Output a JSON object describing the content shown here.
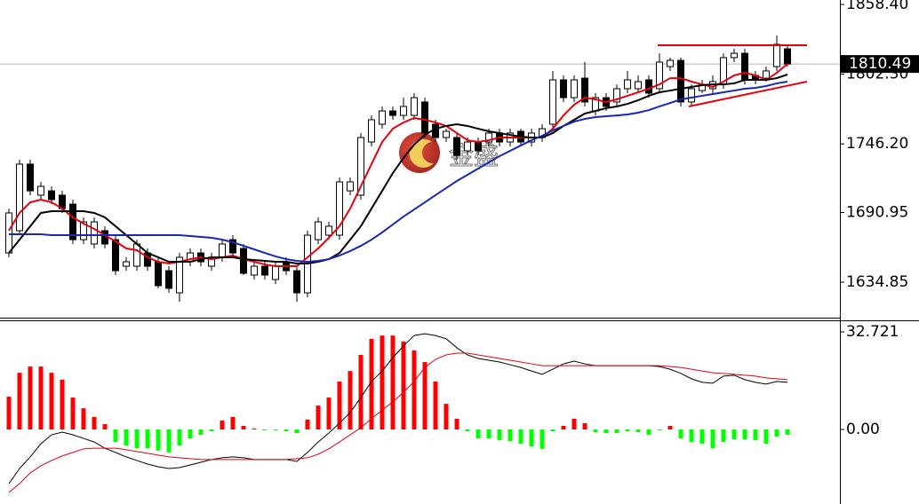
{
  "chart_data": [
    {
      "type": "candlestick",
      "open": [
        1658.4,
        1676.3,
        1729.9,
        1704.9,
        1708.4,
        1704.9,
        1697.7,
        1669.1,
        1665.6,
        1676.3,
        1669.1,
        1647.7,
        1647.7,
        1658.4,
        1651.3,
        1644.1,
        1626.3,
        1651.3,
        1658.4,
        1647.7,
        1654.9,
        1669.1,
        1662.0,
        1640.6,
        1647.7,
        1637.0,
        1651.3,
        1644.1,
        1626.3,
        1669.1,
        1672.7,
        1672.7,
        1708.4,
        1704.9,
        1747.7,
        1762.0,
        1772.7,
        1769.1,
        1769.1,
        1779.9,
        1762.0,
        1751.3,
        1751.3,
        1740.6,
        1747.7,
        1747.7,
        1754.9,
        1747.7,
        1756.3,
        1747.7,
        1751.3,
        1762.0,
        1797.7,
        1783.4,
        1799.1,
        1772.7,
        1783.4,
        1779.9,
        1790.6,
        1790.6,
        1797.7,
        1790.6,
        1808.4,
        1813.4,
        1779.9,
        1789.1,
        1790.6,
        1794.1,
        1815.6,
        1819.1,
        1801.3,
        1799.1,
        1808.4,
        1822.7
      ],
      "high": [
        1694.1,
        1733.4,
        1733.4,
        1715.6,
        1712.0,
        1708.4,
        1701.3,
        1687.0,
        1687.0,
        1679.9,
        1672.7,
        1654.9,
        1669.1,
        1662.0,
        1654.9,
        1647.7,
        1658.4,
        1662.0,
        1662.0,
        1658.4,
        1669.1,
        1672.7,
        1665.6,
        1651.3,
        1651.3,
        1651.3,
        1654.9,
        1647.7,
        1676.3,
        1687.0,
        1683.4,
        1719.1,
        1719.1,
        1754.9,
        1769.1,
        1776.3,
        1776.3,
        1783.4,
        1787.0,
        1783.4,
        1765.6,
        1758.4,
        1754.9,
        1751.3,
        1751.3,
        1758.4,
        1758.4,
        1758.4,
        1758.4,
        1758.4,
        1762.0,
        1804.9,
        1801.3,
        1801.3,
        1812.0,
        1787.0,
        1787.0,
        1794.1,
        1804.9,
        1801.3,
        1801.3,
        1819.1,
        1815.6,
        1815.6,
        1794.1,
        1797.7,
        1801.3,
        1819.1,
        1822.7,
        1822.7,
        1804.9,
        1808.4,
        1833.4,
        1826.3
      ],
      "low": [
        1654.9,
        1672.7,
        1704.9,
        1701.3,
        1697.7,
        1690.6,
        1665.6,
        1665.6,
        1662.0,
        1662.0,
        1640.6,
        1644.1,
        1644.1,
        1644.1,
        1629.9,
        1626.3,
        1619.1,
        1647.7,
        1647.7,
        1644.1,
        1651.3,
        1654.9,
        1640.6,
        1637.0,
        1637.0,
        1633.4,
        1640.6,
        1619.1,
        1622.7,
        1665.6,
        1669.1,
        1669.1,
        1704.9,
        1701.3,
        1744.1,
        1758.4,
        1765.6,
        1765.6,
        1765.6,
        1751.3,
        1747.7,
        1747.7,
        1733.4,
        1737.0,
        1737.0,
        1744.1,
        1744.1,
        1744.1,
        1744.1,
        1744.1,
        1747.7,
        1758.4,
        1779.9,
        1779.9,
        1776.3,
        1769.1,
        1772.7,
        1776.3,
        1787.0,
        1787.0,
        1783.4,
        1787.0,
        1804.9,
        1776.3,
        1776.3,
        1787.0,
        1787.0,
        1790.6,
        1812.0,
        1794.1,
        1794.1,
        1796.3,
        1804.9,
        1808.4
      ],
      "close": [
        1690.6,
        1729.9,
        1708.4,
        1712.0,
        1701.3,
        1694.1,
        1669.1,
        1683.4,
        1683.4,
        1665.6,
        1644.1,
        1651.3,
        1665.6,
        1647.7,
        1632.0,
        1629.9,
        1654.9,
        1658.4,
        1651.3,
        1654.9,
        1665.6,
        1658.4,
        1642.0,
        1647.7,
        1640.6,
        1647.7,
        1644.1,
        1626.3,
        1672.7,
        1683.4,
        1679.9,
        1715.6,
        1715.6,
        1751.3,
        1765.6,
        1772.7,
        1769.1,
        1776.3,
        1783.4,
        1754.9,
        1751.3,
        1756.3,
        1737.0,
        1747.7,
        1740.6,
        1754.9,
        1747.7,
        1754.9,
        1747.7,
        1754.9,
        1758.4,
        1797.7,
        1783.4,
        1797.7,
        1779.9,
        1783.4,
        1776.3,
        1790.6,
        1797.7,
        1796.3,
        1787.0,
        1812.0,
        1813.4,
        1779.9,
        1790.6,
        1794.1,
        1796.3,
        1815.6,
        1819.1,
        1797.7,
        1797.7,
        1804.9,
        1826.3,
        1810.49
      ],
      "up_color": "#ffffff",
      "down_color": "#000000",
      "series": [
        {
          "color": "#e8000b",
          "values": [
            1676.3,
            1690.6,
            1699.1,
            1701.3,
            1699.1,
            1694.1,
            1687.0,
            1682.0,
            1677.7,
            1672.7,
            1667.7,
            1662.0,
            1660.6,
            1654.9,
            1651.3,
            1649.9,
            1651.3,
            1653.4,
            1654.9,
            1653.4,
            1654.9,
            1656.3,
            1653.4,
            1651.3,
            1649.1,
            1647.7,
            1647.7,
            1647.7,
            1654.9,
            1662.0,
            1670.6,
            1679.9,
            1694.1,
            1712.0,
            1729.9,
            1747.7,
            1758.4,
            1763.4,
            1767.0,
            1765.6,
            1763.4,
            1760.6,
            1754.9,
            1749.1,
            1747.7,
            1749.1,
            1751.3,
            1751.3,
            1751.3,
            1751.3,
            1751.3,
            1758.4,
            1769.1,
            1777.7,
            1783.4,
            1782.0,
            1779.9,
            1782.0,
            1784.9,
            1787.7,
            1790.6,
            1794.1,
            1799.1,
            1799.1,
            1796.3,
            1794.1,
            1792.0,
            1796.3,
            1801.3,
            1803.4,
            1801.3,
            1797.7,
            1803.4,
            1810.6
          ]
        },
        {
          "color": "#000000",
          "values": [
            1658.4,
            1669.1,
            1679.9,
            1690.6,
            1692.0,
            1692.0,
            1692.0,
            1692.0,
            1690.6,
            1687.0,
            1679.9,
            1672.7,
            1665.6,
            1658.4,
            1654.9,
            1651.3,
            1651.3,
            1651.3,
            1653.4,
            1654.9,
            1654.9,
            1654.9,
            1653.4,
            1652.7,
            1652.0,
            1651.3,
            1651.3,
            1649.9,
            1649.9,
            1651.3,
            1653.4,
            1658.4,
            1669.1,
            1679.9,
            1694.1,
            1708.4,
            1722.7,
            1734.9,
            1745.6,
            1753.4,
            1758.4,
            1760.6,
            1762.0,
            1760.6,
            1758.4,
            1756.3,
            1754.9,
            1753.4,
            1752.0,
            1751.3,
            1751.3,
            1754.9,
            1760.6,
            1765.6,
            1770.6,
            1772.7,
            1774.9,
            1776.3,
            1778.4,
            1781.3,
            1784.9,
            1787.7,
            1789.1,
            1790.6,
            1792.0,
            1793.4,
            1794.1,
            1794.1,
            1794.9,
            1797.7,
            1797.7,
            1797.7,
            1799.1,
            1802.0
          ]
        },
        {
          "color": "#1428b4",
          "values": [
            1673.4,
            1673.4,
            1673.4,
            1673.4,
            1672.7,
            1672.7,
            1672.7,
            1672.7,
            1672.7,
            1672.7,
            1672.7,
            1672.7,
            1672.7,
            1672.7,
            1672.7,
            1672.7,
            1672.7,
            1672.0,
            1671.3,
            1670.6,
            1669.1,
            1667.0,
            1664.1,
            1661.3,
            1658.4,
            1655.6,
            1653.4,
            1652.0,
            1651.3,
            1652.0,
            1653.4,
            1656.3,
            1659.9,
            1664.1,
            1669.1,
            1674.9,
            1681.3,
            1687.7,
            1693.4,
            1699.1,
            1704.9,
            1710.6,
            1716.3,
            1721.3,
            1726.3,
            1731.3,
            1736.3,
            1740.6,
            1744.9,
            1749.1,
            1752.7,
            1757.0,
            1760.6,
            1764.1,
            1766.3,
            1767.7,
            1768.4,
            1769.1,
            1769.9,
            1771.3,
            1773.4,
            1776.3,
            1779.1,
            1782.0,
            1783.4,
            1784.9,
            1786.3,
            1787.7,
            1789.1,
            1790.6,
            1791.3,
            1792.7,
            1794.9,
            1796.3
          ]
        }
      ],
      "trendlines": [
        {
          "color": "#e8000b",
          "values": [
            1825.6,
            1825.6
          ]
        },
        {
          "color": "#e8000b",
          "values": [
            1776.3,
            1796.3
          ]
        }
      ],
      "last_price": 1810.49,
      "watermark": "金盛",
      "ylim": [
        1606.3,
        1862.0
      ],
      "yticks": [
        {
          "value": 1858.4,
          "label": "1858.40"
        },
        {
          "value": 1802.3,
          "label": "1802.30"
        },
        {
          "value": 1746.2,
          "label": "1746.20"
        },
        {
          "value": 1690.95,
          "label": "1690.95"
        },
        {
          "value": 1634.85,
          "label": "1634.85"
        }
      ]
    },
    {
      "type": "macd",
      "histogram": [
        11.0,
        19.0,
        21.1,
        21.1,
        19.0,
        16.7,
        10.7,
        7.1,
        4.2,
        1.8,
        -4.2,
        -5.4,
        -6.3,
        -6.3,
        -7.1,
        -7.7,
        -5.4,
        -3.0,
        -1.8,
        -0.6,
        3.0,
        4.2,
        1.2,
        0.3,
        -0.3,
        -0.3,
        -0.6,
        -1.2,
        3.3,
        8.0,
        10.7,
        16.1,
        19.6,
        25.0,
        30.4,
        31.5,
        31.5,
        29.5,
        26.5,
        22.6,
        16.1,
        8.6,
        3.6,
        -0.6,
        -3.0,
        -3.0,
        -3.6,
        -3.9,
        -4.8,
        -5.7,
        -6.5,
        -0.6,
        1.2,
        3.6,
        2.1,
        -0.9,
        -1.2,
        -1.2,
        -0.6,
        -0.9,
        -1.8,
        -0.3,
        1.2,
        -3.0,
        -4.2,
        -4.8,
        -6.3,
        -4.2,
        -3.3,
        -3.3,
        -3.6,
        -4.8,
        -2.4,
        -1.8
      ],
      "up_color": "#ff0000",
      "down_color": "#00ff00",
      "series": [
        {
          "color": "#000000",
          "values": [
            -18.2,
            -13.1,
            -9.2,
            -4.8,
            -1.8,
            -0.9,
            -1.8,
            -3.0,
            -4.2,
            -6.3,
            -7.7,
            -9.2,
            -10.4,
            -11.6,
            -12.5,
            -13.1,
            -12.8,
            -11.9,
            -11.0,
            -10.1,
            -9.5,
            -9.2,
            -9.5,
            -10.1,
            -10.1,
            -10.1,
            -10.1,
            -10.7,
            -7.7,
            -4.2,
            -1.2,
            2.1,
            5.7,
            10.7,
            16.1,
            19.6,
            24.1,
            28.0,
            31.5,
            32.1,
            31.5,
            30.4,
            27.4,
            25.0,
            23.8,
            23.2,
            22.6,
            21.7,
            20.8,
            19.6,
            18.5,
            20.2,
            22.0,
            22.9,
            22.0,
            21.4,
            21.4,
            21.4,
            21.4,
            21.4,
            21.4,
            21.1,
            20.2,
            18.8,
            17.0,
            15.8,
            15.5,
            17.9,
            18.2,
            16.7,
            15.8,
            15.2,
            16.1,
            15.8
          ]
        },
        {
          "color": "#e8000b",
          "values": [
            -21.1,
            -18.2,
            -14.6,
            -12.2,
            -10.4,
            -8.9,
            -7.7,
            -6.5,
            -6.3,
            -6.3,
            -6.3,
            -6.8,
            -7.4,
            -8.0,
            -8.6,
            -9.2,
            -9.5,
            -9.8,
            -10.1,
            -10.1,
            -10.1,
            -10.1,
            -10.1,
            -10.1,
            -10.1,
            -10.1,
            -10.1,
            -9.8,
            -9.5,
            -8.3,
            -6.5,
            -4.2,
            -1.8,
            0.6,
            3.6,
            6.5,
            9.2,
            12.5,
            16.1,
            20.8,
            23.5,
            25.0,
            25.6,
            25.6,
            25.0,
            24.4,
            23.8,
            23.2,
            22.6,
            22.0,
            21.4,
            21.4,
            21.4,
            21.4,
            21.4,
            21.4,
            21.4,
            21.4,
            21.4,
            21.4,
            21.4,
            21.4,
            21.1,
            20.8,
            20.2,
            19.6,
            19.0,
            18.8,
            18.5,
            18.2,
            17.9,
            17.3,
            17.0,
            16.7
          ]
        }
      ],
      "ylim": [
        -25,
        36.6
      ],
      "yticks": [
        32.721,
        {
          "value": 0,
          "label": "0.00"
        }
      ]
    }
  ]
}
